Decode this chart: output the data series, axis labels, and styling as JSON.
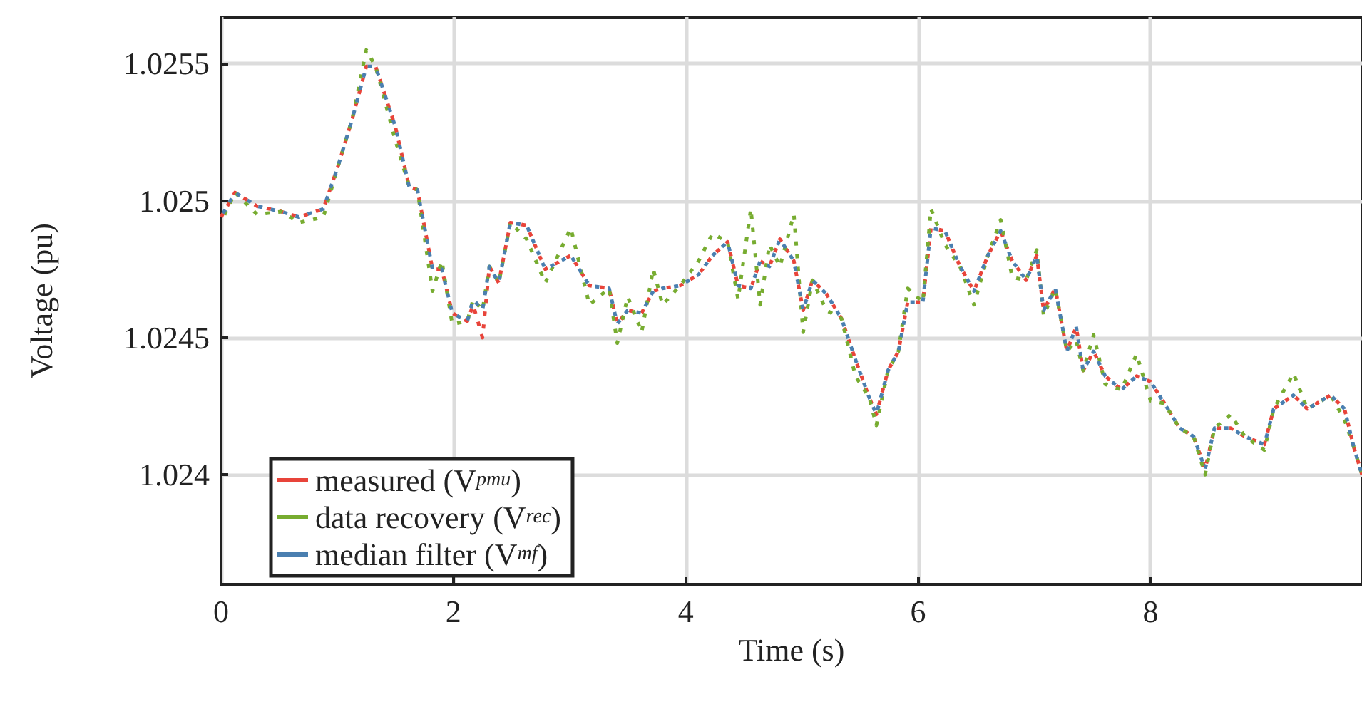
{
  "chart_data": {
    "type": "line",
    "xlabel": "Time (s)",
    "ylabel": "Voltage (pu)",
    "x": [
      0,
      0.12,
      0.31,
      0.52,
      0.67,
      0.88,
      1.01,
      1.13,
      1.25,
      1.33,
      1.5,
      1.62,
      1.69,
      1.82,
      1.9,
      1.99,
      2.12,
      2.17,
      2.25,
      2.31,
      2.39,
      2.49,
      2.63,
      2.79,
      3.01,
      3.17,
      3.34,
      3.41,
      3.5,
      3.62,
      3.72,
      3.8,
      3.95,
      4.11,
      4.23,
      4.36,
      4.45,
      4.56,
      4.64,
      4.72,
      4.81,
      4.93,
      5.01,
      5.09,
      5.21,
      5.34,
      5.46,
      5.58,
      5.64,
      5.74,
      5.83,
      5.91,
      6.04,
      6.11,
      6.23,
      6.36,
      6.48,
      6.6,
      6.71,
      6.81,
      6.93,
      7.02,
      7.08,
      7.18,
      7.28,
      7.36,
      7.42,
      7.51,
      7.61,
      7.75,
      7.88,
      8,
      8.12,
      8.25,
      8.37,
      8.47,
      8.55,
      8.69,
      8.81,
      8.98,
      9.06,
      9.23,
      9.35,
      9.55,
      9.67,
      9.75,
      9.82
    ],
    "series": [
      {
        "name": "measured (V$_{pmu}$)",
        "color": "#e8443a",
        "values": [
          1.02494,
          1.02503,
          1.02498,
          1.02496,
          1.02494,
          1.02497,
          1.02513,
          1.0253,
          1.02549,
          1.02549,
          1.02527,
          1.02505,
          1.02504,
          1.02475,
          1.02475,
          1.02459,
          1.02456,
          1.02462,
          1.0245,
          1.02476,
          1.0247,
          1.02492,
          1.02491,
          1.02475,
          1.0248,
          1.02469,
          1.02468,
          1.02455,
          1.0246,
          1.02459,
          1.02467,
          1.02468,
          1.02469,
          1.02473,
          1.0248,
          1.02485,
          1.02469,
          1.02468,
          1.02478,
          1.02476,
          1.02486,
          1.02478,
          1.0246,
          1.02471,
          1.02466,
          1.02457,
          1.02442,
          1.02428,
          1.02422,
          1.02438,
          1.02445,
          1.02463,
          1.02463,
          1.0249,
          1.02489,
          1.02476,
          1.02467,
          1.0248,
          1.02489,
          1.02478,
          1.02471,
          1.0248,
          1.0246,
          1.02468,
          1.02445,
          1.02454,
          1.02438,
          1.02445,
          1.02436,
          1.02431,
          1.02436,
          1.02434,
          1.02426,
          1.02417,
          1.02414,
          1.02402,
          1.02417,
          1.02417,
          1.02414,
          1.02411,
          1.02424,
          1.02429,
          1.02424,
          1.02429,
          1.02424,
          1.0241,
          1.024
        ]
      },
      {
        "name": "data recovery (V$_{rec}$)",
        "color": "#77ac30",
        "values": [
          1.02492,
          1.02503,
          1.02495,
          1.02496,
          1.02492,
          1.02494,
          1.02513,
          1.0253,
          1.02555,
          1.02549,
          1.02522,
          1.02505,
          1.02504,
          1.02467,
          1.02478,
          1.02455,
          1.02456,
          1.02464,
          1.0246,
          1.02476,
          1.0247,
          1.02492,
          1.02486,
          1.0247,
          1.0249,
          1.02462,
          1.02468,
          1.02448,
          1.02465,
          1.02452,
          1.02475,
          1.02462,
          1.02469,
          1.02478,
          1.02488,
          1.02485,
          1.02464,
          1.02497,
          1.02462,
          1.02484,
          1.02476,
          1.02495,
          1.02452,
          1.02471,
          1.0246,
          1.02457,
          1.02436,
          1.02428,
          1.02418,
          1.02438,
          1.02445,
          1.02468,
          1.02463,
          1.02497,
          1.02484,
          1.02476,
          1.02462,
          1.0248,
          1.02493,
          1.02472,
          1.02471,
          1.02482,
          1.02458,
          1.02468,
          1.02445,
          1.02449,
          1.02438,
          1.02451,
          1.02433,
          1.02431,
          1.02444,
          1.02427,
          1.02426,
          1.02417,
          1.02414,
          1.024,
          1.02417,
          1.02422,
          1.02414,
          1.02409,
          1.02424,
          1.02437,
          1.02424,
          1.02429,
          1.0242,
          1.0241,
          1.024
        ]
      },
      {
        "name": "median filter (V$_{mf}$)",
        "color": "#4a7fb0",
        "values": [
          1.02494,
          1.02503,
          1.02498,
          1.02496,
          1.02494,
          1.02497,
          1.02513,
          1.0253,
          1.02549,
          1.02549,
          1.02527,
          1.02505,
          1.02504,
          1.02475,
          1.02475,
          1.02459,
          1.02456,
          1.02464,
          1.0246,
          1.02476,
          1.0247,
          1.02492,
          1.02491,
          1.02475,
          1.0248,
          1.02469,
          1.02468,
          1.02455,
          1.0246,
          1.02459,
          1.02467,
          1.02468,
          1.02469,
          1.02473,
          1.0248,
          1.02485,
          1.02469,
          1.02468,
          1.02478,
          1.02476,
          1.02486,
          1.02478,
          1.0246,
          1.02471,
          1.02466,
          1.02457,
          1.02442,
          1.02428,
          1.02422,
          1.02438,
          1.02445,
          1.02463,
          1.02463,
          1.0249,
          1.02489,
          1.02476,
          1.02467,
          1.0248,
          1.02489,
          1.02478,
          1.02471,
          1.0248,
          1.0246,
          1.02468,
          1.02445,
          1.02454,
          1.02438,
          1.02445,
          1.02436,
          1.02431,
          1.02436,
          1.02434,
          1.02426,
          1.02417,
          1.02414,
          1.02402,
          1.02417,
          1.02417,
          1.02414,
          1.02411,
          1.02424,
          1.02429,
          1.02424,
          1.02429,
          1.02424,
          1.0241,
          1.024
        ]
      }
    ],
    "xlim": [
      0,
      9.82
    ],
    "xticks": [
      0,
      2,
      4,
      6,
      8
    ],
    "ylim": [
      1.0236,
      1.02567
    ],
    "yticks": [
      1.024,
      1.0245,
      1.025,
      1.0255
    ],
    "grid": true,
    "legend": "bottom left",
    "marker": "none",
    "line_style": "dotted"
  }
}
